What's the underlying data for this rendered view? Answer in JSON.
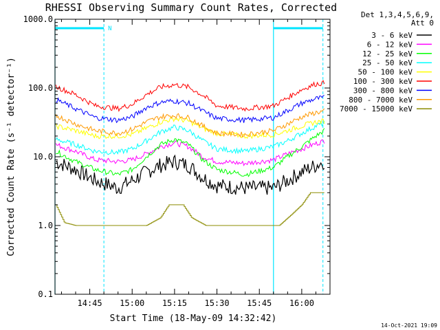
{
  "chart_data": {
    "type": "line",
    "title": "RHESSI Observing Summary Count Rates, Corrected",
    "xlabel": "Start Time (18-May-09 14:32:42)",
    "ylabel": "Corrected Count Rate (s⁻¹ detector⁻¹)",
    "ylog": true,
    "ylim": [
      0.1,
      1000.0
    ],
    "xlim": [
      "14:32:42",
      "16:10:00"
    ],
    "x_ticks": [
      "14:45",
      "15:00",
      "15:15",
      "15:30",
      "15:45",
      "16:00"
    ],
    "y_ticks": [
      "0.1",
      "1.0",
      "10.0",
      "100.0",
      "1000.0"
    ],
    "legend_header": [
      "Det 1,3,4,5,6,9,",
      "Att 0"
    ],
    "legend_position": "right",
    "timestamp": "14-Oct-2021 19:09",
    "night_flag_label": "N",
    "night_intervals": [
      [
        "14:32:42",
        "14:50:00"
      ],
      [
        "15:50:00",
        "16:07:30"
      ]
    ],
    "series": [
      {
        "name": "3 - 6 keV",
        "color": "#000000",
        "points": [
          [
            "14:33",
            8.5
          ],
          [
            "14:40",
            6.5
          ],
          [
            "14:47",
            4.5
          ],
          [
            "14:55",
            3.5
          ],
          [
            "15:00",
            4.5
          ],
          [
            "15:05",
            6
          ],
          [
            "15:10",
            7.5
          ],
          [
            "15:15",
            8.5
          ],
          [
            "15:20",
            7.5
          ],
          [
            "15:25",
            5
          ],
          [
            "15:30",
            3.8
          ],
          [
            "15:40",
            3.5
          ],
          [
            "15:50",
            3.5
          ],
          [
            "15:55",
            4.5
          ],
          [
            "16:00",
            6
          ],
          [
            "16:05",
            7.5
          ],
          [
            "16:08",
            8.5
          ]
        ]
      },
      {
        "name": "6 - 12 keV",
        "color": "#ff00ff",
        "points": [
          [
            "14:33",
            15
          ],
          [
            "14:40",
            12
          ],
          [
            "14:47",
            9
          ],
          [
            "14:55",
            8.5
          ],
          [
            "15:00",
            9
          ],
          [
            "15:05",
            11
          ],
          [
            "15:10",
            14
          ],
          [
            "15:15",
            16
          ],
          [
            "15:20",
            14
          ],
          [
            "15:25",
            10
          ],
          [
            "15:30",
            8.5
          ],
          [
            "15:40",
            8
          ],
          [
            "15:50",
            9
          ],
          [
            "15:55",
            11
          ],
          [
            "16:00",
            13
          ],
          [
            "16:05",
            15.5
          ],
          [
            "16:08",
            17
          ]
        ]
      },
      {
        "name": "12 - 25 keV",
        "color": "#00ff00",
        "points": [
          [
            "14:33",
            12
          ],
          [
            "14:40",
            8.5
          ],
          [
            "14:47",
            6.5
          ],
          [
            "14:55",
            5.5
          ],
          [
            "15:00",
            6.5
          ],
          [
            "15:05",
            10
          ],
          [
            "15:10",
            15
          ],
          [
            "15:15",
            18
          ],
          [
            "15:20",
            15
          ],
          [
            "15:25",
            9
          ],
          [
            "15:30",
            6.5
          ],
          [
            "15:40",
            5.5
          ],
          [
            "15:50",
            7
          ],
          [
            "15:55",
            10
          ],
          [
            "16:00",
            14
          ],
          [
            "16:05",
            20
          ],
          [
            "16:08",
            24
          ]
        ]
      },
      {
        "name": "25 - 50 keV",
        "color": "#00ffff",
        "points": [
          [
            "14:33",
            18
          ],
          [
            "14:40",
            15
          ],
          [
            "14:47",
            12
          ],
          [
            "14:55",
            11.5
          ],
          [
            "15:00",
            13
          ],
          [
            "15:05",
            17
          ],
          [
            "15:10",
            23
          ],
          [
            "15:15",
            27
          ],
          [
            "15:20",
            24
          ],
          [
            "15:25",
            17
          ],
          [
            "15:30",
            13
          ],
          [
            "15:40",
            12
          ],
          [
            "15:50",
            14
          ],
          [
            "15:55",
            17
          ],
          [
            "16:00",
            22
          ],
          [
            "16:05",
            28
          ],
          [
            "16:08",
            31
          ]
        ]
      },
      {
        "name": "50 - 100 keV",
        "color": "#ffff00",
        "points": [
          [
            "14:33",
            28
          ],
          [
            "14:40",
            24
          ],
          [
            "14:47",
            20
          ],
          [
            "14:55",
            20
          ],
          [
            "15:00",
            21
          ],
          [
            "15:05",
            26
          ],
          [
            "15:10",
            32
          ],
          [
            "15:15",
            36
          ],
          [
            "15:20",
            33
          ],
          [
            "15:25",
            26
          ],
          [
            "15:30",
            22
          ],
          [
            "15:40",
            20
          ],
          [
            "15:50",
            21
          ],
          [
            "15:55",
            24
          ],
          [
            "16:00",
            28
          ],
          [
            "16:05",
            32
          ],
          [
            "16:08",
            33
          ]
        ]
      },
      {
        "name": "100 - 300 keV",
        "color": "#ff0000",
        "points": [
          [
            "14:33",
            105
          ],
          [
            "14:40",
            80
          ],
          [
            "14:47",
            55
          ],
          [
            "14:55",
            50
          ],
          [
            "15:00",
            58
          ],
          [
            "15:05",
            80
          ],
          [
            "15:10",
            103
          ],
          [
            "15:15",
            112
          ],
          [
            "15:20",
            103
          ],
          [
            "15:25",
            78
          ],
          [
            "15:30",
            55
          ],
          [
            "15:40",
            50
          ],
          [
            "15:50",
            55
          ],
          [
            "15:55",
            72
          ],
          [
            "16:00",
            95
          ],
          [
            "16:05",
            115
          ],
          [
            "16:08",
            118
          ]
        ]
      },
      {
        "name": "300 - 800 keV",
        "color": "#0000ff",
        "points": [
          [
            "14:33",
            68
          ],
          [
            "14:40",
            50
          ],
          [
            "14:47",
            37
          ],
          [
            "14:55",
            34
          ],
          [
            "15:00",
            38
          ],
          [
            "15:05",
            52
          ],
          [
            "15:10",
            62
          ],
          [
            "15:15",
            65
          ],
          [
            "15:20",
            60
          ],
          [
            "15:25",
            46
          ],
          [
            "15:30",
            36
          ],
          [
            "15:40",
            34
          ],
          [
            "15:50",
            37
          ],
          [
            "15:55",
            47
          ],
          [
            "16:00",
            60
          ],
          [
            "16:05",
            70
          ],
          [
            "16:08",
            72
          ]
        ]
      },
      {
        "name": "800 - 7000 keV",
        "color": "#ff9900",
        "points": [
          [
            "14:33",
            40
          ],
          [
            "14:40",
            30
          ],
          [
            "14:47",
            24
          ],
          [
            "14:55",
            22
          ],
          [
            "15:00",
            25
          ],
          [
            "15:05",
            32
          ],
          [
            "15:10",
            38
          ],
          [
            "15:15",
            40
          ],
          [
            "15:20",
            37
          ],
          [
            "15:25",
            28
          ],
          [
            "15:30",
            22
          ],
          [
            "15:40",
            21
          ],
          [
            "15:50",
            24
          ],
          [
            "15:55",
            30
          ],
          [
            "16:00",
            38
          ],
          [
            "16:05",
            44
          ],
          [
            "16:08",
            46
          ]
        ]
      },
      {
        "name": "7000 - 15000 keV",
        "color": "#8b8b00",
        "points": [
          [
            "14:33",
            2.0
          ],
          [
            "14:36",
            1.1
          ],
          [
            "14:40",
            1.0
          ],
          [
            "14:52",
            1.0
          ],
          [
            "15:05",
            1.0
          ],
          [
            "15:10",
            1.3
          ],
          [
            "15:13",
            2.0
          ],
          [
            "15:18",
            2.0
          ],
          [
            "15:21",
            1.3
          ],
          [
            "15:26",
            1.0
          ],
          [
            "15:52",
            1.0
          ],
          [
            "15:56",
            1.4
          ],
          [
            "16:00",
            2.0
          ],
          [
            "16:03",
            3.0
          ],
          [
            "16:08",
            3.0
          ]
        ]
      }
    ]
  }
}
